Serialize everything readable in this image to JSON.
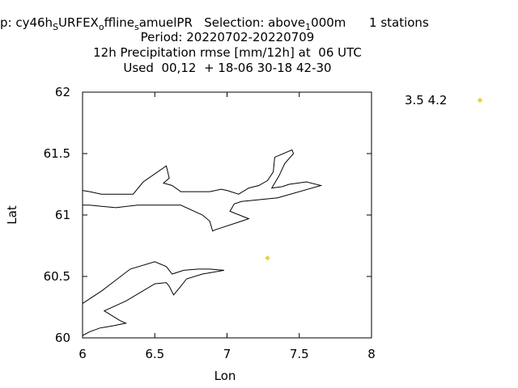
{
  "chart_data": {
    "type": "scatter",
    "title": {
      "line1": {
        "pre": "p: cy46h",
        "sub1": "S",
        "mid1": "URFEX",
        "sub2": "o",
        "mid2": "ffline",
        "sub3": "s",
        "mid3": "amuelPR   Selection: above",
        "sub4": "1",
        "mid4": "000m      1 stations"
      },
      "line2": "Period: 20220702-20220709",
      "line3": "12h Precipitation rmse [mm/12h] at  06 UTC",
      "line4": "Used  00,12  + 18-06 30-18 42-30"
    },
    "xlabel": "Lon",
    "ylabel": "Lat",
    "xlim": [
      6,
      8
    ],
    "ylim": [
      60,
      62
    ],
    "xticks": [
      "6",
      "6.5",
      "7",
      "7.5",
      "8"
    ],
    "yticks": [
      "60",
      "60.5",
      "61",
      "61.5",
      "62"
    ],
    "legend": {
      "label": "3.5 4.2",
      "position": "top-right-outside",
      "color": "#e8d13a"
    },
    "series": [
      {
        "x": [
          7.28
        ],
        "y": [
          60.65
        ],
        "color": "#e8d13a",
        "marker": "diamond"
      }
    ],
    "coastlines": [
      [
        [
          6.0,
          61.2
        ],
        [
          6.05,
          61.19
        ],
        [
          6.13,
          61.17
        ],
        [
          6.35,
          61.17
        ],
        [
          6.42,
          61.27
        ],
        [
          6.58,
          61.4
        ],
        [
          6.6,
          61.3
        ],
        [
          6.56,
          61.26
        ],
        [
          6.62,
          61.24
        ],
        [
          6.68,
          61.19
        ],
        [
          6.85,
          61.19
        ],
        [
          6.88,
          61.19
        ],
        [
          6.96,
          61.21
        ],
        [
          7.0,
          61.2
        ],
        [
          7.08,
          61.17
        ],
        [
          7.15,
          61.22
        ],
        [
          7.22,
          61.24
        ],
        [
          7.28,
          61.28
        ],
        [
          7.32,
          61.35
        ],
        [
          7.33,
          61.47
        ],
        [
          7.45,
          61.53
        ],
        [
          7.46,
          61.5
        ],
        [
          7.4,
          61.42
        ],
        [
          7.36,
          61.32
        ],
        [
          7.31,
          61.22
        ],
        [
          7.38,
          61.23
        ],
        [
          7.43,
          61.25
        ],
        [
          7.55,
          61.27
        ],
        [
          7.65,
          61.24
        ],
        [
          7.35,
          61.14
        ],
        [
          7.1,
          61.11
        ],
        [
          7.05,
          61.09
        ],
        [
          7.02,
          61.03
        ],
        [
          7.15,
          60.97
        ],
        [
          7.1,
          60.95
        ],
        [
          6.92,
          60.88
        ],
        [
          6.9,
          60.87
        ],
        [
          6.88,
          60.95
        ],
        [
          6.83,
          61.0
        ],
        [
          6.68,
          61.08
        ],
        [
          6.58,
          61.08
        ],
        [
          6.38,
          61.08
        ],
        [
          6.23,
          61.06
        ],
        [
          6.05,
          61.08
        ],
        [
          6.0,
          61.08
        ]
      ],
      [
        [
          6.0,
          60.28
        ],
        [
          6.13,
          60.38
        ],
        [
          6.33,
          60.56
        ],
        [
          6.5,
          60.62
        ],
        [
          6.58,
          60.58
        ],
        [
          6.62,
          60.52
        ],
        [
          6.7,
          60.55
        ],
        [
          6.8,
          60.56
        ],
        [
          6.88,
          60.56
        ],
        [
          6.98,
          60.55
        ],
        [
          6.83,
          60.52
        ],
        [
          6.72,
          60.48
        ],
        [
          6.68,
          60.42
        ],
        [
          6.63,
          60.35
        ],
        [
          6.6,
          60.42
        ],
        [
          6.58,
          60.45
        ],
        [
          6.5,
          60.44
        ],
        [
          6.3,
          60.3
        ],
        [
          6.15,
          60.22
        ],
        [
          6.26,
          60.14
        ],
        [
          6.3,
          60.12
        ],
        [
          6.22,
          60.1
        ],
        [
          6.12,
          60.08
        ],
        [
          6.05,
          60.05
        ],
        [
          6.0,
          60.02
        ]
      ]
    ]
  }
}
